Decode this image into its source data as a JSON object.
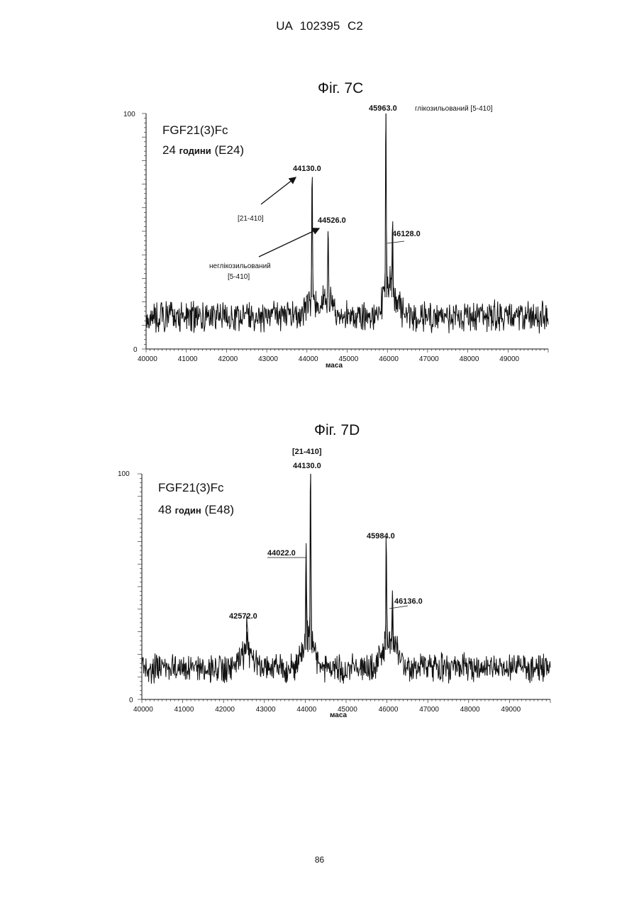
{
  "header": "UA   102395   C2",
  "page_number": "86",
  "chart_data": [
    {
      "type": "line",
      "title": "Фіг. 7C",
      "text_lines": [
        {
          "main": "FGF21(3)Fc"
        },
        {
          "main": "24",
          "bold": "години",
          "tail": "(E24)"
        }
      ],
      "xlabel": "маса",
      "xlim": [
        40000,
        50000
      ],
      "ylim": [
        0,
        100
      ],
      "x_ticks": [
        "40000",
        "41000",
        "42000",
        "43000",
        "44000",
        "45000",
        "46000",
        "47000",
        "48000",
        "49000"
      ],
      "y_ticks": [
        "0",
        "100"
      ],
      "peaks": [
        {
          "label": "44130.0",
          "x": 44130,
          "y": 72
        },
        {
          "label": "44526.0",
          "x": 44526,
          "y": 50
        },
        {
          "label": "45963.0",
          "x": 45963,
          "y": 100
        },
        {
          "label": "46128.0",
          "x": 46128,
          "y": 45
        }
      ],
      "annotations": [
        {
          "text": "глікозильований [5-410]"
        },
        {
          "text": "[21-410]"
        },
        {
          "text": "неглікозильований"
        },
        {
          "text": "[5-410]"
        }
      ],
      "baseline": 14
    },
    {
      "type": "line",
      "title": "Фіг. 7D",
      "text_lines": [
        {
          "main": "FGF21(3)Fc"
        },
        {
          "main": "48",
          "bold": "годин",
          "tail": "(E48)"
        }
      ],
      "xlabel": "маса",
      "xlim": [
        40000,
        50000
      ],
      "ylim": [
        0,
        100
      ],
      "x_ticks": [
        "40000",
        "41000",
        "42000",
        "43000",
        "44000",
        "45000",
        "46000",
        "47000",
        "48000",
        "49000"
      ],
      "y_ticks": [
        "0",
        "100"
      ],
      "peaks": [
        {
          "label": "42572.0",
          "x": 42572,
          "y": 30
        },
        {
          "label": "44022.0",
          "x": 44022,
          "y": 59
        },
        {
          "label": "44130.0",
          "x": 44130,
          "y": 100
        },
        {
          "label": "45984.0",
          "x": 45984,
          "y": 67
        },
        {
          "label": "46136.0",
          "x": 46136,
          "y": 40
        }
      ],
      "annotations": [
        {
          "text": "[21-410]"
        }
      ],
      "baseline": 14
    }
  ]
}
